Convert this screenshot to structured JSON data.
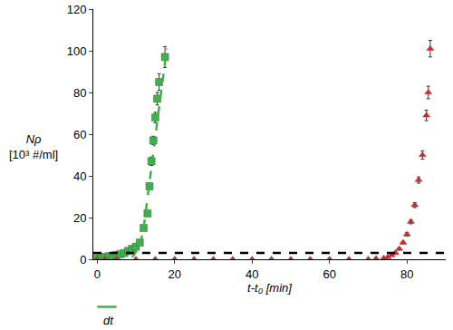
{
  "chart_data": {
    "type": "scatter",
    "x_label": "t-t₀ [min]",
    "y_label": [
      "Nρ",
      "[10³ #/ml]"
    ],
    "xlim": [
      -1,
      90
    ],
    "xticks": [
      0,
      20,
      40,
      60,
      80
    ],
    "ylim": [
      0,
      120
    ],
    "yticks": [
      0,
      20,
      40,
      60,
      80,
      100,
      120
    ],
    "grid": false,
    "series": [
      {
        "type": "scatter",
        "color": "#3cb34a",
        "marker": "square",
        "x": [
          0,
          1,
          2,
          3,
          4,
          5,
          6,
          7,
          8,
          9,
          10,
          11,
          12,
          13,
          13.5,
          14,
          14.5,
          15,
          15.5,
          16,
          17.5
        ],
        "values": [
          0.5,
          1,
          1,
          1.5,
          1.5,
          2,
          2.5,
          3,
          4,
          5,
          6,
          8,
          15,
          22,
          35,
          47,
          57,
          68,
          77,
          85,
          97
        ],
        "error": [
          0.2,
          0.2,
          0.2,
          0.3,
          0.3,
          0.3,
          0.3,
          0.4,
          0.5,
          0.5,
          0.6,
          0.8,
          1,
          1.2,
          1.5,
          2,
          2,
          2.5,
          3,
          4,
          5
        ]
      },
      {
        "type": "line",
        "color": "#3cb34a",
        "line_style": "dash",
        "x": [
          9,
          11,
          12,
          14,
          16,
          18
        ],
        "values": [
          1,
          6,
          15,
          45,
          73,
          101
        ]
      },
      {
        "type": "scatter",
        "color": "#e8231f",
        "marker": "triangle-up",
        "x": [
          0,
          2,
          5,
          10,
          15,
          20,
          25,
          30,
          35,
          40,
          45,
          50,
          55,
          60,
          65,
          70,
          72,
          74,
          75,
          76,
          77,
          78,
          79,
          80,
          81,
          82,
          83,
          84,
          85,
          85.5,
          86
        ],
        "values": [
          0,
          0,
          0,
          0,
          0,
          0,
          0,
          0,
          0,
          0,
          0,
          0,
          0,
          0,
          0,
          0,
          0.3,
          0.5,
          1,
          2,
          3,
          5,
          8,
          12,
          18,
          26,
          38,
          50,
          69,
          80,
          101
        ],
        "error": [
          0.1,
          0.1,
          0.1,
          0.1,
          0.1,
          0.1,
          0.1,
          0.1,
          0.1,
          0.1,
          0.1,
          0.1,
          0.1,
          0.1,
          0.1,
          0.1,
          0.1,
          0.1,
          0.2,
          0.3,
          0.4,
          0.5,
          0.6,
          0.8,
          1,
          1.2,
          1.5,
          2,
          2.5,
          3,
          4
        ]
      },
      {
        "type": "line",
        "color": "#000000",
        "line_style": "dash",
        "x": [
          -1,
          90
        ],
        "values": [
          3,
          3
        ]
      }
    ],
    "annotations": [
      {
        "text": "dt",
        "x": 3
      }
    ],
    "dt_span": [
      0,
      5
    ]
  }
}
